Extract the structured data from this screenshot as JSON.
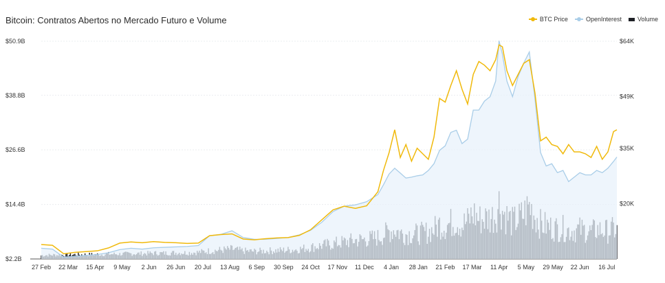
{
  "header": {
    "title": "Bitcoin: Contratos Abertos no Mercado Futuro e Volume"
  },
  "legend": [
    {
      "label": "BTC Price",
      "color": "#f0b90b",
      "kind": "line"
    },
    {
      "label": "OpenInterest",
      "color": "#a9cde8",
      "kind": "line"
    },
    {
      "label": "Volume",
      "color": "#1e2026",
      "kind": "bar"
    }
  ],
  "chart_data": {
    "type": "line",
    "title": "Bitcoin: Contratos Abertos no Mercado Futuro e Volume",
    "left_axis": {
      "ticks": [
        "$2.2B",
        "$14.4B",
        "$26.6B",
        "$38.8B",
        "$50.9B"
      ],
      "range": [
        2.2,
        50.9
      ],
      "unit": "B USD"
    },
    "right_axis": {
      "ticks": [
        "$20K",
        "$35K",
        "$49K",
        "$64K"
      ],
      "tick_values": [
        20,
        35,
        49,
        64
      ],
      "range": [
        5,
        64
      ],
      "unit": "K USD"
    },
    "x_ticks": [
      "27 Feb",
      "22 Mar",
      "15 Apr",
      "9 May",
      "2 Jun",
      "26 Jun",
      "20 Jul",
      "13 Aug",
      "6 Sep",
      "30 Sep",
      "24 Oct",
      "17 Nov",
      "11 Dec",
      "4 Jan",
      "28 Jan",
      "21 Feb",
      "17 Mar",
      "11 Apr",
      "5 May",
      "29 May",
      "22 Jun",
      "16 Jul"
    ],
    "x_positions": [
      0,
      24,
      48,
      72,
      96,
      120,
      144,
      168,
      192,
      216,
      240,
      264,
      288,
      312,
      336,
      360,
      384,
      408,
      432,
      456,
      480,
      504
    ],
    "x_end": 513,
    "grid": "horizontal",
    "legend_position": "top-right",
    "series": [
      {
        "name": "BTC Price",
        "axis": "right",
        "color": "#f0b90b",
        "x": [
          0,
          10,
          20,
          30,
          40,
          50,
          60,
          70,
          80,
          90,
          100,
          110,
          120,
          130,
          140,
          150,
          160,
          170,
          180,
          190,
          200,
          210,
          220,
          230,
          240,
          250,
          260,
          270,
          280,
          290,
          300,
          305,
          310,
          315,
          320,
          325,
          330,
          335,
          340,
          345,
          350,
          355,
          360,
          365,
          370,
          375,
          380,
          385,
          390,
          395,
          400,
          405,
          408,
          411,
          415,
          420,
          425,
          430,
          435,
          440,
          445,
          450,
          455,
          460,
          465,
          470,
          475,
          480,
          485,
          490,
          495,
          500,
          505,
          510,
          513
        ],
        "values": [
          8.9,
          8.7,
          6.4,
          6.8,
          7.0,
          7.2,
          8.0,
          9.3,
          9.6,
          9.4,
          9.7,
          9.5,
          9.4,
          9.2,
          9.3,
          11.3,
          11.6,
          11.8,
          10.4,
          10.2,
          10.5,
          10.7,
          10.8,
          11.4,
          12.9,
          15.6,
          18.3,
          19.3,
          18.7,
          19.4,
          23.2,
          29.0,
          33.8,
          40.0,
          32.5,
          36.0,
          31.5,
          35.0,
          33.5,
          32.0,
          38.0,
          48.5,
          47.5,
          52.0,
          56.0,
          51.0,
          47.0,
          55.0,
          58.5,
          57.5,
          56.0,
          59.0,
          63.0,
          62.5,
          56.0,
          52.0,
          55.0,
          58.0,
          59.0,
          50.0,
          37.0,
          38.0,
          36.0,
          35.5,
          33.5,
          36.0,
          34.0,
          34.0,
          33.5,
          32.5,
          35.5,
          32.0,
          34.0,
          39.5,
          40.0
        ]
      },
      {
        "name": "OpenInterest",
        "axis": "left",
        "color": "#a9cde8",
        "x": [
          0,
          10,
          20,
          30,
          40,
          50,
          60,
          70,
          80,
          90,
          100,
          110,
          120,
          130,
          140,
          150,
          160,
          170,
          180,
          190,
          200,
          210,
          220,
          230,
          240,
          250,
          260,
          270,
          280,
          290,
          300,
          305,
          310,
          315,
          320,
          325,
          330,
          335,
          340,
          345,
          350,
          355,
          360,
          365,
          370,
          375,
          380,
          385,
          390,
          395,
          400,
          405,
          408,
          411,
          415,
          420,
          425,
          430,
          435,
          440,
          445,
          450,
          455,
          460,
          465,
          470,
          475,
          480,
          485,
          490,
          495,
          500,
          505,
          510,
          513
        ],
        "values": [
          4.6,
          4.4,
          2.6,
          2.8,
          3.0,
          3.2,
          3.6,
          4.3,
          4.6,
          4.4,
          4.7,
          4.8,
          4.9,
          5.0,
          5.2,
          7.4,
          7.7,
          8.5,
          7.0,
          6.6,
          6.6,
          6.8,
          7.0,
          7.6,
          8.6,
          10.4,
          12.8,
          14.0,
          14.3,
          15.0,
          16.6,
          18.8,
          21.2,
          22.5,
          21.4,
          20.3,
          20.5,
          20.8,
          21.0,
          22.0,
          23.5,
          26.5,
          27.5,
          30.5,
          31.0,
          28.0,
          29.0,
          35.5,
          35.5,
          37.5,
          38.5,
          42.0,
          51.0,
          48.0,
          42.0,
          38.5,
          43.0,
          46.0,
          48.5,
          38.0,
          26.0,
          23.0,
          23.5,
          21.5,
          22.0,
          19.5,
          20.5,
          21.5,
          21.0,
          21.0,
          22.0,
          21.5,
          22.5,
          24.0,
          25.0
        ]
      },
      {
        "name": "Volume",
        "axis": "left",
        "color": "#1e2026",
        "type": "bar",
        "x": [
          0,
          10,
          20,
          30,
          40,
          50,
          60,
          70,
          80,
          90,
          100,
          110,
          120,
          130,
          140,
          150,
          160,
          170,
          180,
          190,
          200,
          210,
          220,
          230,
          240,
          250,
          260,
          270,
          280,
          290,
          300,
          305,
          310,
          315,
          320,
          325,
          330,
          335,
          340,
          345,
          350,
          355,
          360,
          365,
          370,
          375,
          380,
          385,
          390,
          395,
          400,
          405,
          408,
          411,
          415,
          420,
          425,
          430,
          435,
          440,
          445,
          450,
          455,
          460,
          465,
          470,
          475,
          480,
          485,
          490,
          495,
          500,
          505,
          510,
          513
        ],
        "values": [
          3.0,
          3.1,
          3.1,
          3.2,
          3.2,
          3.2,
          3.3,
          3.3,
          3.4,
          3.4,
          3.5,
          3.5,
          3.6,
          3.6,
          3.7,
          4.0,
          4.2,
          4.4,
          4.0,
          3.9,
          4.0,
          4.1,
          4.2,
          4.4,
          4.8,
          5.2,
          5.6,
          6.0,
          6.4,
          6.6,
          7.0,
          7.6,
          8.4,
          8.8,
          8.0,
          7.8,
          7.8,
          7.8,
          8.0,
          8.2,
          8.8,
          10.0,
          9.6,
          10.2,
          10.8,
          9.8,
          10.6,
          12.4,
          11.0,
          11.2,
          11.4,
          12.0,
          14.8,
          13.0,
          11.6,
          10.4,
          11.0,
          12.2,
          14.0,
          12.0,
          10.0,
          9.6,
          9.2,
          9.0,
          9.0,
          8.6,
          8.6,
          8.8,
          8.6,
          8.2,
          8.8,
          8.6,
          8.4,
          8.8,
          8.6
        ]
      }
    ]
  }
}
